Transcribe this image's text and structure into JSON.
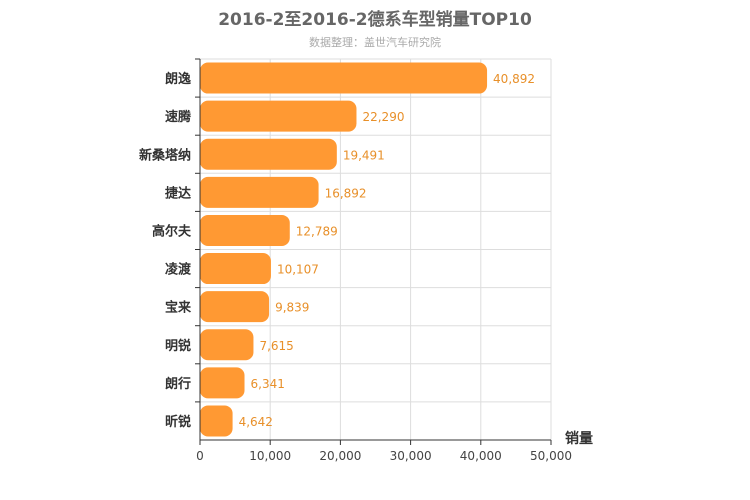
{
  "chart_data": {
    "type": "bar",
    "orientation": "horizontal",
    "title": "2016-2至2016-2德系车型销量TOP10",
    "subtitle": "数据整理：盖世汽车研究院",
    "xlabel": "销量",
    "ylabel": "",
    "categories": [
      "朗逸",
      "速腾",
      "新桑塔纳",
      "捷达",
      "高尔夫",
      "凌渡",
      "宝来",
      "明锐",
      "朗行",
      "昕锐"
    ],
    "values": [
      40892,
      22290,
      19491,
      16892,
      12789,
      10107,
      9839,
      7615,
      6341,
      4642
    ],
    "value_labels": [
      "40,892",
      "22,290",
      "19,491",
      "16,892",
      "12,789",
      "10,107",
      "9,839",
      "7,615",
      "6,341",
      "4,642"
    ],
    "xlim": [
      0,
      50000
    ],
    "xticks": [
      0,
      10000,
      20000,
      30000,
      40000,
      50000
    ],
    "xtick_labels": [
      "0",
      "10,000",
      "20,000",
      "30,000",
      "40,000",
      "50,000"
    ],
    "grid": true,
    "colors": {
      "bar": "#ff9933",
      "label": "#e8902a",
      "grid": "#dddddd",
      "axis": "#333333"
    }
  }
}
